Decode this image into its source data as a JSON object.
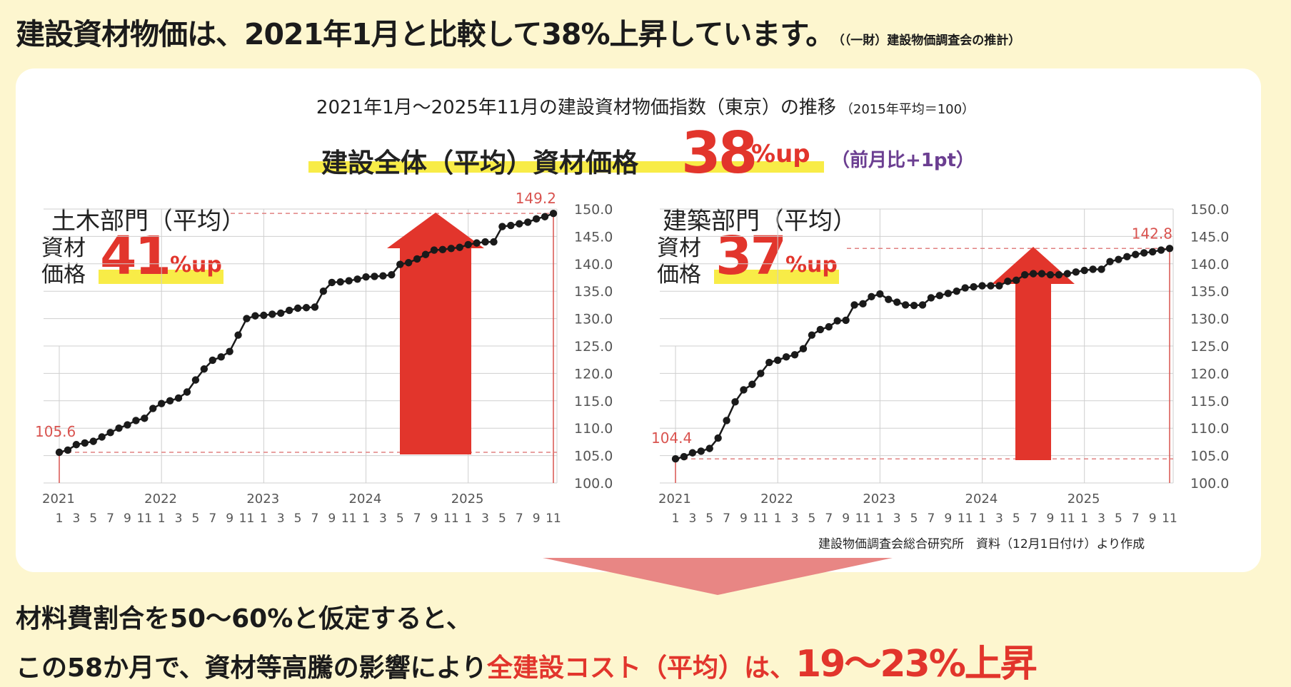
{
  "headline": {
    "text": "建設資材物価は、2021年1月と比較して38%上昇しています。",
    "source": "（（一財）建設物価調査会の推計）"
  },
  "chart_title": "2021年1月〜2025年11月の建設資材物価指数（東京）の推移",
  "chart_note": "（2015年平均＝100）",
  "overall": {
    "label": "建設全体（平均）資材価格",
    "value": "38",
    "unit": "%up",
    "prev": "（前月比+1pt）"
  },
  "colors": {
    "accent": "#e2352c",
    "highlight": "#f8ec47",
    "purple": "#6b3e91",
    "line": "#1a1a1a"
  },
  "chart_data": [
    {
      "type": "line",
      "title": "土木部門（平均）",
      "stat_label_1": "資材",
      "stat_label_2": "価格",
      "stat_value": "41",
      "stat_unit": "%up",
      "start_label": "105.6",
      "end_label": "149.2",
      "ylim": [
        100,
        150
      ],
      "yticks": [
        "100.0",
        "105.0",
        "110.0",
        "115.0",
        "120.0",
        "125.0",
        "130.0",
        "135.0",
        "140.0",
        "145.0",
        "150.0"
      ],
      "years": [
        "2021",
        "2022",
        "2023",
        "2024",
        "2025"
      ],
      "month_ticks": [
        "1",
        "3",
        "5",
        "7",
        "9",
        "11",
        "1",
        "3",
        "5",
        "7",
        "9",
        "11",
        "1",
        "3",
        "5",
        "7",
        "9",
        "11",
        "1",
        "3",
        "5",
        "7",
        "9",
        "11",
        "1",
        "3",
        "5",
        "7",
        "9",
        "11"
      ],
      "values": [
        105.6,
        106.0,
        107.0,
        107.3,
        107.6,
        108.4,
        109.2,
        110.0,
        110.6,
        111.4,
        111.8,
        113.6,
        114.5,
        115.0,
        115.5,
        116.6,
        118.8,
        120.8,
        122.4,
        123.0,
        124.0,
        127.0,
        130.0,
        130.5,
        130.6,
        130.8,
        131.0,
        131.5,
        131.9,
        132.0,
        132.1,
        135.0,
        136.6,
        136.7,
        136.9,
        137.2,
        137.6,
        137.7,
        137.8,
        138.0,
        139.9,
        140.2,
        140.9,
        141.7,
        142.5,
        142.6,
        142.8,
        143.0,
        143.5,
        143.8,
        144.0,
        144.0,
        146.8,
        147.0,
        147.3,
        147.6,
        148.2,
        148.6,
        149.2
      ]
    },
    {
      "type": "line",
      "title": "建築部門（平均）",
      "stat_label_1": "資材",
      "stat_label_2": "価格",
      "stat_value": "37",
      "stat_unit": "%up",
      "start_label": "104.4",
      "end_label": "142.8",
      "ylim": [
        100,
        150
      ],
      "yticks": [
        "100.0",
        "105.0",
        "110.0",
        "115.0",
        "120.0",
        "125.0",
        "130.0",
        "135.0",
        "140.0",
        "145.0",
        "150.0"
      ],
      "years": [
        "2021",
        "2022",
        "2023",
        "2024",
        "2025"
      ],
      "month_ticks": [
        "1",
        "3",
        "5",
        "7",
        "9",
        "11",
        "1",
        "3",
        "5",
        "7",
        "9",
        "11",
        "1",
        "3",
        "5",
        "7",
        "9",
        "11",
        "1",
        "3",
        "5",
        "7",
        "9",
        "11",
        "1",
        "3",
        "5",
        "7",
        "9",
        "11"
      ],
      "values": [
        104.4,
        104.8,
        105.5,
        105.8,
        106.3,
        108.2,
        111.4,
        114.8,
        117.0,
        118.0,
        120.0,
        122.0,
        122.4,
        123.0,
        123.4,
        124.5,
        127.0,
        128.0,
        128.5,
        129.6,
        129.7,
        132.5,
        132.7,
        134.0,
        134.5,
        133.5,
        133.0,
        132.5,
        132.4,
        132.5,
        133.8,
        134.2,
        134.6,
        135.0,
        135.6,
        135.8,
        136.0,
        136.0,
        136.0,
        136.8,
        137.0,
        138.0,
        138.2,
        138.2,
        138.0,
        138.0,
        138.2,
        138.5,
        138.8,
        139.0,
        139.0,
        140.4,
        140.8,
        141.3,
        141.7,
        142.0,
        142.2,
        142.5,
        142.8
      ]
    }
  ],
  "source_note": "建設物価調査会総合研究所　資料（12月1日付け）より作成",
  "conclusion": {
    "line1": "材料費割合を50〜60%と仮定すると、",
    "line2_a": "この58か月で、資材等高騰の影響により",
    "line2_b": "全建設コスト（平均）は、",
    "line2_c": "19〜23%上昇"
  }
}
